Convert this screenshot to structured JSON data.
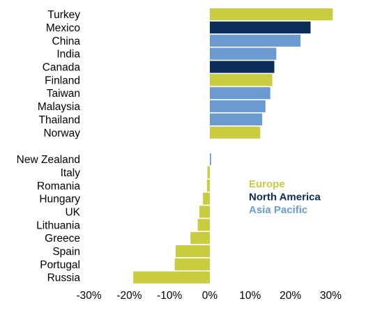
{
  "chart_data": {
    "type": "bar",
    "orientation": "horizontal",
    "categories": [
      "Turkey",
      "Mexico",
      "China",
      "India",
      "Canada",
      "Finland",
      "Taiwan",
      "Malaysia",
      "Thailand",
      "Norway",
      "New Zealand",
      "Italy",
      "Romania",
      "Hungary",
      "UK",
      "Lithuania",
      "Greece",
      "Spain",
      "Portugal",
      "Russia"
    ],
    "values": [
      30.5,
      25.0,
      22.5,
      16.5,
      16.0,
      15.5,
      15.0,
      13.8,
      13.0,
      12.5,
      0.3,
      -0.6,
      -0.7,
      -1.7,
      -2.6,
      -3.0,
      -4.8,
      -8.5,
      -8.7,
      -19.0
    ],
    "regions": [
      "Europe",
      "North America",
      "Asia Pacific",
      "Asia Pacific",
      "North America",
      "Europe",
      "Asia Pacific",
      "Asia Pacific",
      "Asia Pacific",
      "Europe",
      "Asia Pacific",
      "Europe",
      "Europe",
      "Europe",
      "Europe",
      "Europe",
      "Europe",
      "Europe",
      "Europe",
      "Europe"
    ],
    "groups": [
      10,
      10
    ],
    "xlim": [
      -30,
      30
    ],
    "xticks": [
      -30,
      -20,
      -10,
      0,
      10,
      20,
      30
    ],
    "xtick_labels": [
      "-30%",
      "-20%",
      "-10%",
      "0%",
      "10%",
      "20%",
      "30%"
    ],
    "legend": [
      {
        "name": "Europe",
        "color": "#c9cc3f"
      },
      {
        "name": "North America",
        "color": "#0a2d5a"
      },
      {
        "name": "Asia Pacific",
        "color": "#6b9bd1"
      }
    ],
    "legend_position": "right",
    "grid": false,
    "title": "",
    "xlabel": "",
    "ylabel": ""
  }
}
